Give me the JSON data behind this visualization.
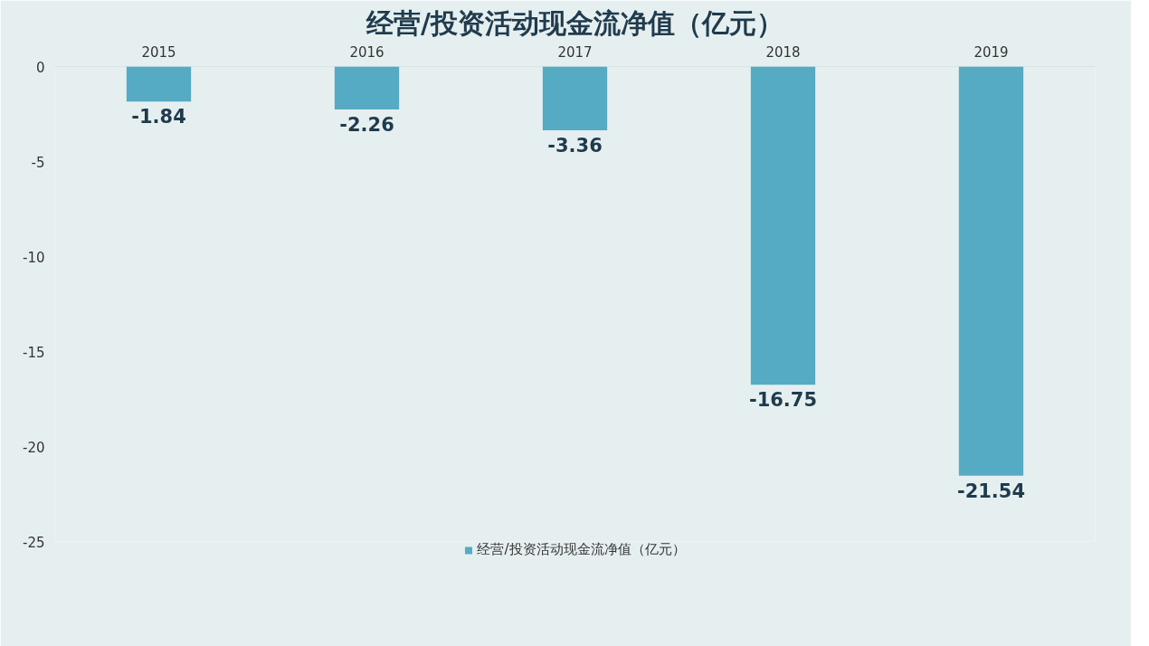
{
  "chart_data": {
    "type": "bar",
    "title": "经营/投资活动现金流净值（亿元）",
    "categories": [
      "2015",
      "2016",
      "2017",
      "2018",
      "2019"
    ],
    "series": [
      {
        "name": "经营/投资活动现金流净值（亿元）",
        "color": "#55abc4",
        "values": [
          -1.84,
          -2.26,
          -3.36,
          -16.75,
          -21.54
        ]
      }
    ],
    "ylim": [
      -25,
      0
    ],
    "yticks": [
      -25,
      -20,
      -15,
      -10,
      -5,
      0
    ],
    "grid": false,
    "legend": "bottom",
    "data_labels": true
  }
}
